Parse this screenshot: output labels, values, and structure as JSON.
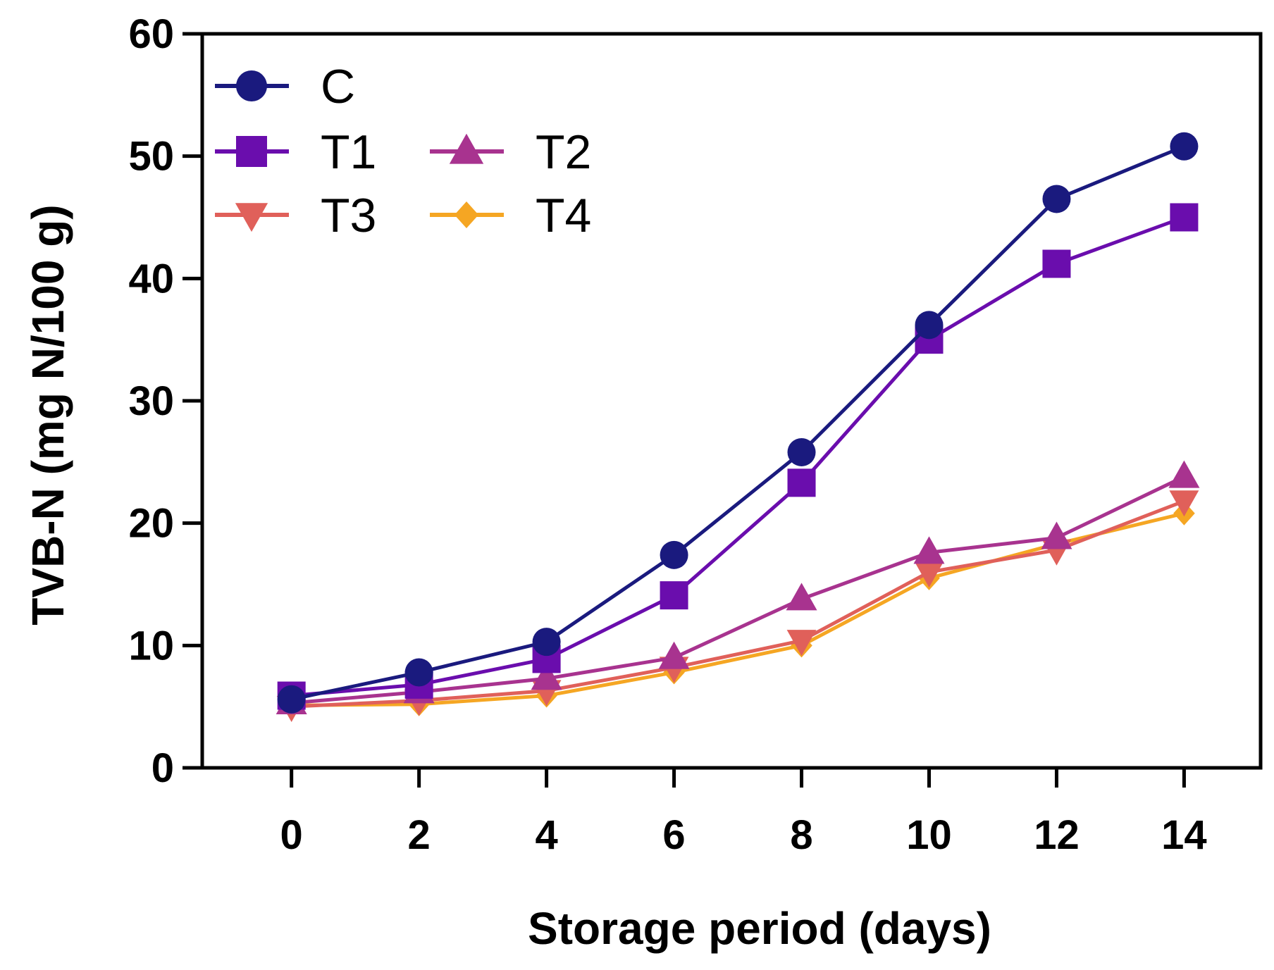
{
  "chart_data": {
    "type": "line",
    "title": "",
    "xlabel": "Storage period (days)",
    "ylabel": "TVB-N (mg N/100 g)",
    "xlim": [
      -1.4,
      15.2
    ],
    "ylim": [
      0,
      60
    ],
    "x": [
      0,
      2,
      4,
      6,
      8,
      10,
      12,
      14
    ],
    "xticks": [
      0,
      2,
      4,
      6,
      8,
      10,
      12,
      14
    ],
    "xtick_labels": [
      "0",
      "2",
      "4",
      "6",
      "8",
      "10",
      "12",
      "14"
    ],
    "yticks": [
      0,
      10,
      20,
      30,
      40,
      50,
      60
    ],
    "ytick_labels": [
      "0",
      "10",
      "20",
      "30",
      "40",
      "50",
      "60"
    ],
    "grid": false,
    "legend_position": "top-left",
    "series": [
      {
        "name": "C",
        "marker": "circle",
        "color": "#1a1a7e",
        "values": [
          5.6,
          7.8,
          10.3,
          17.4,
          25.8,
          36.2,
          46.5,
          50.8
        ]
      },
      {
        "name": "T1",
        "marker": "square",
        "color": "#6a0dad",
        "values": [
          5.9,
          6.8,
          8.9,
          14.1,
          23.3,
          35.0,
          41.2,
          45.0
        ]
      },
      {
        "name": "T2",
        "marker": "triangle-up",
        "color": "#a8338f",
        "values": [
          5.3,
          6.2,
          7.3,
          9.0,
          13.8,
          17.6,
          18.8,
          23.8
        ]
      },
      {
        "name": "T3",
        "marker": "triangle-down",
        "color": "#e0605a",
        "values": [
          5.0,
          5.5,
          6.3,
          8.2,
          10.4,
          16.0,
          17.8,
          21.8
        ]
      },
      {
        "name": "T4",
        "marker": "diamond",
        "color": "#f5a623",
        "values": [
          5.1,
          5.2,
          5.9,
          7.8,
          10.0,
          15.5,
          18.3,
          20.8
        ]
      }
    ]
  }
}
